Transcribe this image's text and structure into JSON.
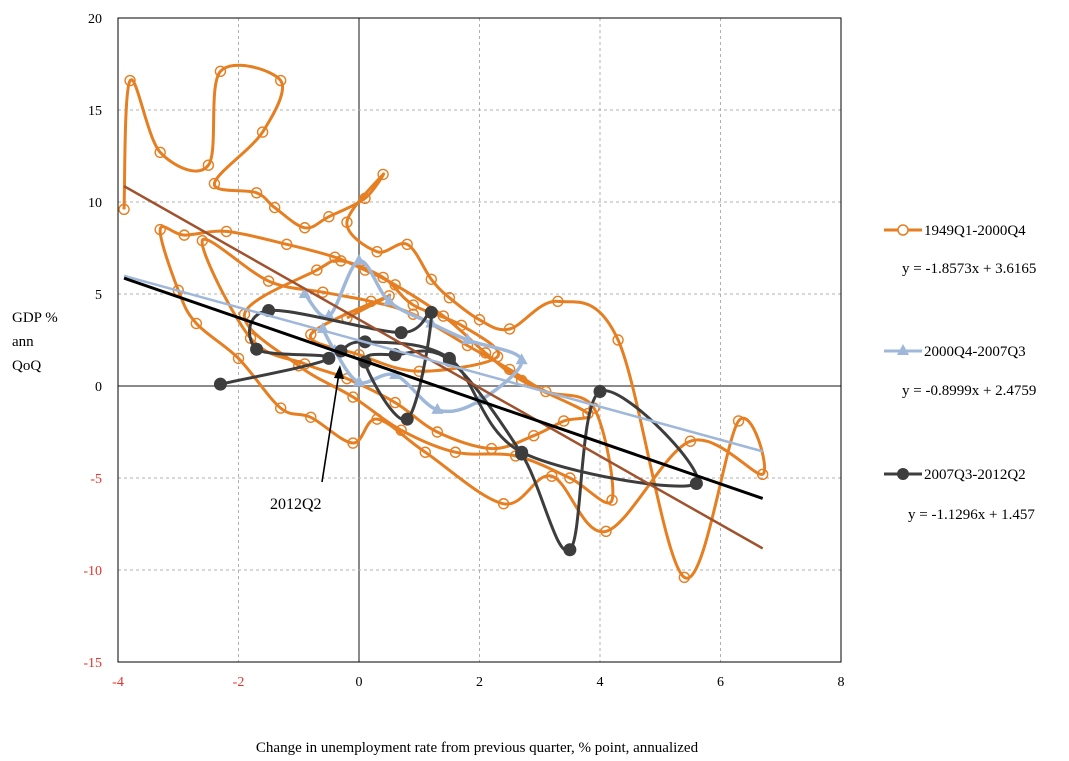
{
  "chart_data": {
    "type": "scatter",
    "title": "",
    "xlabel": "Change in unemployment rate from previous quarter, % point, annualized",
    "ylabel_lines": [
      "GDP %",
      "ann",
      "QoQ"
    ],
    "xlim": [
      -4,
      8
    ],
    "ylim": [
      -15,
      20
    ],
    "x_ticks": [
      "-4",
      "-2",
      "0",
      "2",
      "4",
      "6",
      "8"
    ],
    "y_ticks": [
      "-15",
      "-10",
      "-5",
      "0",
      "5",
      "10",
      "15",
      "20"
    ],
    "grid": true,
    "legend_position": "right",
    "series": [
      {
        "name": "1949Q1-2000Q4",
        "color": "#e67e22",
        "marker": "circle-open",
        "trend_equation": "y = -1.8573x + 3.6165",
        "trendline": {
          "slope": -1.8573,
          "intercept": 3.6165,
          "x_from": -3.9,
          "x_to": 6.7,
          "color": "#a0522d"
        },
        "x": [
          -3.9,
          -3.8,
          -3.3,
          -2.5,
          -2.3,
          -1.3,
          -1.6,
          -2.4,
          -1.7,
          -1.4,
          -0.9,
          -0.5,
          0.1,
          0.4,
          -0.2,
          0.3,
          0.8,
          1.2,
          1.5,
          2.0,
          2.5,
          3.3,
          4.3,
          5.4,
          6.3,
          6.7,
          5.5,
          4.1,
          3.2,
          2.4,
          1.1,
          0.3,
          -0.1,
          -0.8,
          -1.3,
          -2.0,
          -2.7,
          -3.0,
          -3.3,
          -2.9,
          -2.2,
          -1.2,
          -0.4,
          0.1,
          0.6,
          1.4,
          2.1,
          2.7,
          3.8,
          3.4,
          2.9,
          2.2,
          1.3,
          0.6,
          -0.2,
          -0.9,
          -1.8,
          -2.6,
          -1.5,
          -0.6,
          0.2,
          0.9,
          1.8,
          2.5,
          3.1,
          3.9,
          4.2,
          3.5,
          2.6,
          1.6,
          0.7,
          -0.1,
          -1.0,
          -1.9,
          -0.7,
          -0.3,
          0.4,
          0.9,
          1.7,
          2.3,
          1.0,
          0.0,
          -0.8,
          0.5,
          -0.2
        ],
        "y": [
          9.6,
          16.6,
          12.7,
          12.0,
          17.1,
          16.6,
          13.8,
          11.0,
          10.5,
          9.7,
          8.6,
          9.2,
          10.2,
          11.5,
          8.9,
          7.3,
          7.7,
          5.8,
          4.8,
          3.6,
          3.1,
          4.6,
          2.5,
          -10.4,
          -1.9,
          -4.8,
          -3.0,
          -7.9,
          -4.9,
          -6.4,
          -3.6,
          -1.8,
          -3.1,
          -1.7,
          -1.2,
          1.5,
          3.4,
          5.2,
          8.5,
          8.2,
          8.4,
          7.7,
          7.0,
          6.3,
          5.5,
          3.8,
          1.8,
          0.3,
          -1.5,
          -1.9,
          -2.7,
          -3.4,
          -2.5,
          -0.9,
          0.4,
          1.2,
          2.6,
          7.9,
          5.7,
          5.1,
          4.6,
          3.9,
          2.2,
          0.9,
          -0.3,
          -1.2,
          -6.2,
          -5.0,
          -3.8,
          -3.6,
          -2.4,
          -0.6,
          1.1,
          3.9,
          6.3,
          6.8,
          5.9,
          4.4,
          3.3,
          1.6,
          0.8,
          1.7,
          2.8,
          4.9,
          3.7
        ]
      },
      {
        "name": "2000Q4-2007Q3",
        "color": "#9fb8d9",
        "marker": "triangle",
        "trend_equation": "y = -0.8999x + 2.4759",
        "trendline": {
          "slope": -0.8999,
          "intercept": 2.4759,
          "x_from": -3.9,
          "x_to": 6.7,
          "color": "#9fb8d9"
        },
        "x": [
          -0.9,
          -0.5,
          0.0,
          0.5,
          1.2,
          1.8,
          2.7,
          2.0,
          1.3,
          0.6,
          0.0,
          -0.4,
          -0.6
        ],
        "y": [
          5.0,
          3.8,
          6.8,
          4.6,
          3.4,
          2.5,
          1.4,
          -0.8,
          -1.3,
          0.6,
          0.2,
          1.9,
          3.1
        ]
      },
      {
        "name": "2007Q3-2012Q2",
        "color": "#3d3d3d",
        "marker": "circle-filled",
        "trend_equation": "y = -1.1296x + 1.457",
        "trendline": {
          "slope": -1.1296,
          "intercept": 1.457,
          "x_from": -3.9,
          "x_to": 6.7,
          "color": "#000000"
        },
        "x": [
          -2.3,
          -0.5,
          -1.7,
          -1.5,
          0.7,
          1.2,
          0.8,
          0.1,
          0.6,
          1.5,
          2.7,
          3.5,
          4.0,
          5.6,
          2.7,
          1.5,
          0.1,
          -0.3
        ],
        "y": [
          0.1,
          1.5,
          2.0,
          4.1,
          2.9,
          4.0,
          -1.8,
          1.3,
          1.7,
          1.4,
          -3.7,
          -8.9,
          -0.3,
          -5.3,
          -3.6,
          1.5,
          2.4,
          1.9
        ]
      }
    ],
    "annotations": [
      {
        "text": "2012Q2",
        "points_to": {
          "x": -0.3,
          "y": 1.9
        }
      }
    ]
  }
}
